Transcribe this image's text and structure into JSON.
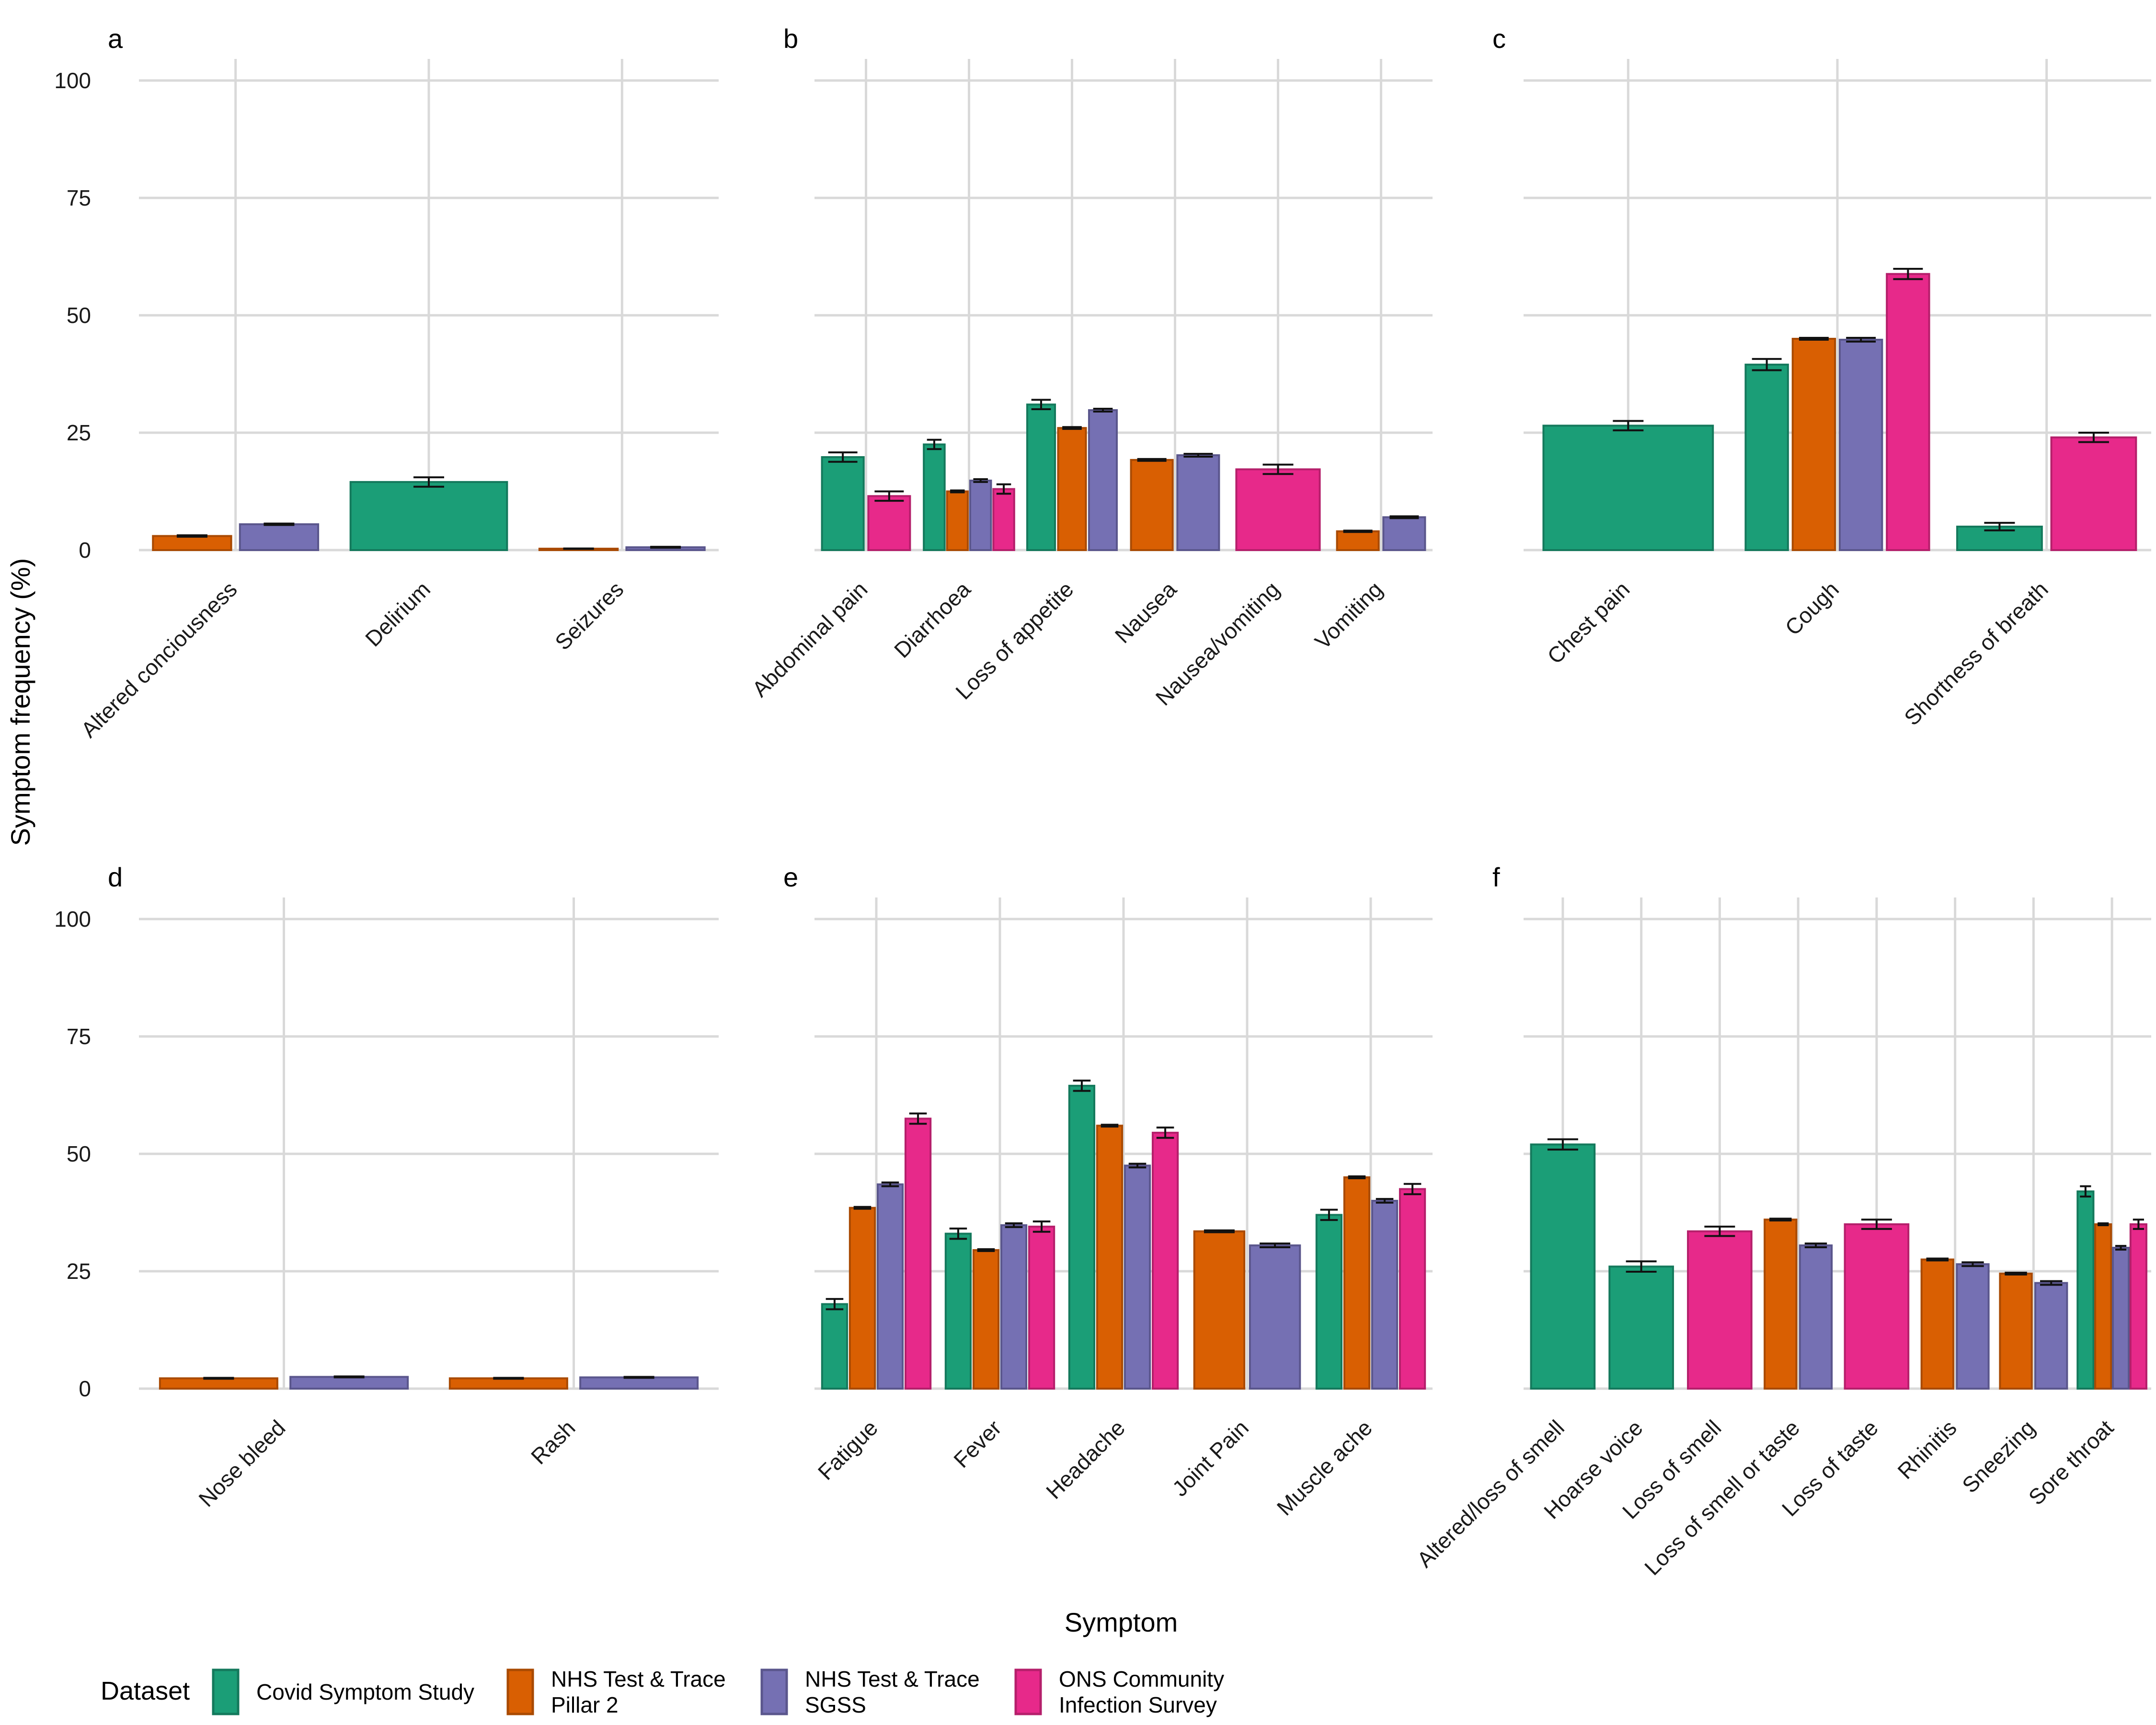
{
  "figure": {
    "y_axis_title": "Symptom frequency (%)",
    "x_axis_title": "Symptom"
  },
  "legend": {
    "title": "Dataset",
    "entries": [
      {
        "lines": [
          "Covid Symptom Study"
        ],
        "color": "#1b9e77"
      },
      {
        "lines": [
          "NHS Test & Trace",
          "Pillar 2"
        ],
        "color": "#d95f02"
      },
      {
        "lines": [
          "NHS Test & Trace",
          "SGSS"
        ],
        "color": "#7570b3"
      },
      {
        "lines": [
          "ONS Community",
          "Infection Survey"
        ],
        "color": "#e7298a"
      }
    ]
  },
  "chart_data": [
    {
      "panel": "a",
      "type": "bar",
      "ylim": [
        0,
        100
      ],
      "yticks": [
        0,
        25,
        50,
        75,
        100
      ],
      "categories": [
        "Altered conciousness",
        "Delirium",
        "Seizures"
      ],
      "series": [
        {
          "name": "Covid Symptom Study",
          "values": [
            null,
            14.5,
            null
          ],
          "errors": [
            null,
            1.0,
            null
          ]
        },
        {
          "name": "NHS Test & Trace Pillar 2",
          "values": [
            3.0,
            null,
            0.3
          ],
          "errors": [
            0.15,
            null,
            0.05
          ]
        },
        {
          "name": "NHS Test & Trace SGSS",
          "values": [
            5.5,
            null,
            0.6
          ],
          "errors": [
            0.15,
            null,
            0.1
          ]
        },
        {
          "name": "ONS Community Infection Survey",
          "values": [
            null,
            null,
            null
          ],
          "errors": [
            null,
            null,
            null
          ]
        }
      ]
    },
    {
      "panel": "b",
      "type": "bar",
      "ylim": [
        0,
        100
      ],
      "yticks": [
        0,
        25,
        50,
        75,
        100
      ],
      "categories": [
        "Abdominal pain",
        "Diarrhoea",
        "Loss of appetite",
        "Nausea",
        "Nausea/vomiting",
        "Vomiting"
      ],
      "series": [
        {
          "name": "Covid Symptom Study",
          "values": [
            19.8,
            22.5,
            31.0,
            null,
            null,
            null
          ],
          "errors": [
            1.0,
            1.0,
            1.0,
            null,
            null,
            null
          ]
        },
        {
          "name": "NHS Test & Trace Pillar 2",
          "values": [
            null,
            12.5,
            26.0,
            19.2,
            null,
            4.0
          ],
          "errors": [
            null,
            0.2,
            0.2,
            0.2,
            null,
            0.15
          ]
        },
        {
          "name": "NHS Test & Trace SGSS",
          "values": [
            null,
            14.8,
            29.8,
            20.2,
            null,
            7.0
          ],
          "errors": [
            null,
            0.3,
            0.3,
            0.3,
            null,
            0.2
          ]
        },
        {
          "name": "ONS Community Infection Survey",
          "values": [
            11.5,
            13.0,
            null,
            null,
            17.2,
            null
          ],
          "errors": [
            1.0,
            1.0,
            null,
            null,
            1.0,
            null
          ]
        }
      ]
    },
    {
      "panel": "c",
      "type": "bar",
      "ylim": [
        0,
        100
      ],
      "yticks": [
        0,
        25,
        50,
        75,
        100
      ],
      "categories": [
        "Chest pain",
        "Cough",
        "Shortness of breath"
      ],
      "series": [
        {
          "name": "Covid Symptom Study",
          "values": [
            26.5,
            39.5,
            5.0
          ],
          "errors": [
            1.0,
            1.2,
            0.8
          ]
        },
        {
          "name": "NHS Test & Trace Pillar 2",
          "values": [
            null,
            45.0,
            null
          ],
          "errors": [
            null,
            0.2,
            null
          ]
        },
        {
          "name": "NHS Test & Trace SGSS",
          "values": [
            null,
            44.8,
            null
          ],
          "errors": [
            null,
            0.4,
            null
          ]
        },
        {
          "name": "ONS Community Infection Survey",
          "values": [
            null,
            58.8,
            24.0
          ],
          "errors": [
            null,
            1.1,
            1.0
          ]
        }
      ]
    },
    {
      "panel": "d",
      "type": "bar",
      "ylim": [
        0,
        100
      ],
      "yticks": [
        0,
        25,
        50,
        75,
        100
      ],
      "categories": [
        "Nose bleed",
        "Rash"
      ],
      "series": [
        {
          "name": "Covid Symptom Study",
          "values": [
            null,
            null
          ],
          "errors": [
            null,
            null
          ]
        },
        {
          "name": "NHS Test & Trace Pillar 2",
          "values": [
            2.2,
            2.2
          ],
          "errors": [
            0.1,
            0.1
          ]
        },
        {
          "name": "NHS Test & Trace SGSS",
          "values": [
            2.5,
            2.4
          ],
          "errors": [
            0.1,
            0.1
          ]
        },
        {
          "name": "ONS Community Infection Survey",
          "values": [
            null,
            null
          ],
          "errors": [
            null,
            null
          ]
        }
      ]
    },
    {
      "panel": "e",
      "type": "bar",
      "ylim": [
        0,
        100
      ],
      "yticks": [
        0,
        25,
        50,
        75,
        100
      ],
      "categories": [
        "Fatigue",
        "Fever",
        "Headache",
        "Joint Pain",
        "Muscle ache"
      ],
      "series": [
        {
          "name": "Covid Symptom Study",
          "values": [
            18.0,
            33.0,
            64.5,
            null,
            37.0
          ],
          "errors": [
            1.1,
            1.1,
            1.1,
            null,
            1.1
          ]
        },
        {
          "name": "NHS Test & Trace Pillar 2",
          "values": [
            38.5,
            29.5,
            56.0,
            33.5,
            45.0
          ],
          "errors": [
            0.2,
            0.2,
            0.2,
            0.2,
            0.2
          ]
        },
        {
          "name": "NHS Test & Trace SGSS",
          "values": [
            43.5,
            34.8,
            47.5,
            30.5,
            40.0
          ],
          "errors": [
            0.4,
            0.4,
            0.4,
            0.4,
            0.4
          ]
        },
        {
          "name": "ONS Community Infection Survey",
          "values": [
            57.5,
            34.5,
            54.5,
            null,
            42.5
          ],
          "errors": [
            1.1,
            1.1,
            1.1,
            null,
            1.1
          ]
        }
      ]
    },
    {
      "panel": "f",
      "type": "bar",
      "ylim": [
        0,
        100
      ],
      "yticks": [
        0,
        25,
        50,
        75,
        100
      ],
      "categories": [
        "Altered/loss of smell",
        "Hoarse voice",
        "Loss of smell",
        "Loss of smell or taste",
        "Loss of taste",
        "Rhinitis",
        "Sneezing",
        "Sore throat"
      ],
      "series": [
        {
          "name": "Covid Symptom Study",
          "values": [
            52.0,
            26.0,
            null,
            null,
            null,
            null,
            null,
            42.0
          ],
          "errors": [
            1.1,
            1.1,
            null,
            null,
            null,
            null,
            null,
            1.1
          ]
        },
        {
          "name": "NHS Test & Trace Pillar 2",
          "values": [
            null,
            null,
            null,
            36.0,
            null,
            27.5,
            24.5,
            35.0
          ],
          "errors": [
            null,
            null,
            null,
            0.2,
            null,
            0.2,
            0.2,
            0.2
          ]
        },
        {
          "name": "NHS Test & Trace SGSS",
          "values": [
            null,
            null,
            null,
            30.5,
            null,
            26.5,
            22.5,
            30.0
          ],
          "errors": [
            null,
            null,
            null,
            0.4,
            null,
            0.4,
            0.4,
            0.4
          ]
        },
        {
          "name": "ONS Community Infection Survey",
          "values": [
            null,
            null,
            33.5,
            null,
            35.0,
            null,
            null,
            35.0
          ],
          "errors": [
            null,
            null,
            1.0,
            null,
            1.0,
            null,
            null,
            1.0
          ]
        }
      ]
    }
  ]
}
